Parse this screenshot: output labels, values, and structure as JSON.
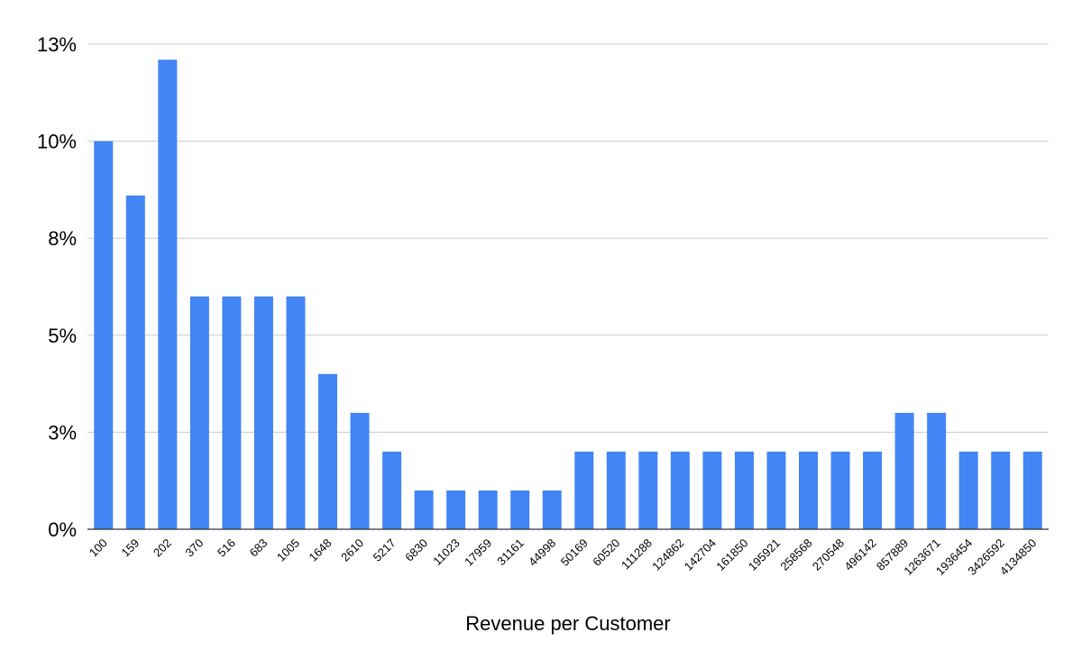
{
  "chart_data": {
    "type": "bar",
    "title": "",
    "xlabel": "Revenue per Customer",
    "ylabel": "",
    "y_ticks": [
      "0%",
      "3%",
      "5%",
      "8%",
      "10%",
      "13%"
    ],
    "ylim": [
      0,
      12.5
    ],
    "grid": true,
    "legend": "none",
    "categories": [
      "100",
      "159",
      "202",
      "370",
      "516",
      "683",
      "1005",
      "1648",
      "2610",
      "5217",
      "6830",
      "11023",
      "17959",
      "31161",
      "44998",
      "50169",
      "60520",
      "111288",
      "124862",
      "142704",
      "161850",
      "195921",
      "258568",
      "270548",
      "496142",
      "857889",
      "1263671",
      "1936454",
      "3426592",
      "4134850"
    ],
    "values": [
      10,
      8.6,
      12.1,
      6.0,
      6.0,
      6.0,
      6.0,
      4.0,
      3.0,
      2.0,
      1.0,
      1.0,
      1.0,
      1.0,
      1.0,
      2.0,
      2.0,
      2.0,
      2.0,
      2.0,
      2.0,
      2.0,
      2.0,
      2.0,
      2.0,
      3.0,
      3.0,
      2.0,
      2.0,
      2.0
    ],
    "bar_color": "#4285f4",
    "grid_color": "#cccccc"
  }
}
